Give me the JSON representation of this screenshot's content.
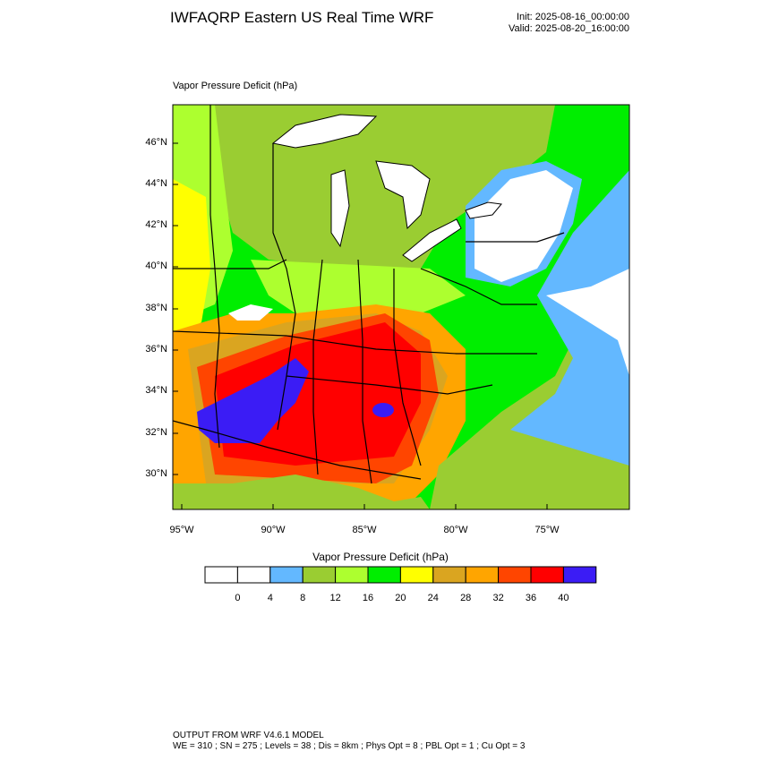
{
  "header": {
    "title": "IWFAQRP Eastern US Real Time WRF",
    "init": "Init: 2025-08-16_00:00:00",
    "valid": "Valid: 2025-08-20_16:00:00"
  },
  "map": {
    "label": "Vapor Pressure Deficit   (hPa)",
    "lat_labels": [
      "46°N",
      "44°N",
      "42°N",
      "40°N",
      "38°N",
      "36°N",
      "34°N",
      "32°N",
      "30°N"
    ],
    "lon_labels": [
      "95°W",
      "90°W",
      "85°W",
      "80°W",
      "75°W"
    ]
  },
  "colorbar": {
    "title": "Vapor Pressure Deficit  (hPa)",
    "labels": [
      "0",
      "4",
      "8",
      "12",
      "16",
      "20",
      "24",
      "28",
      "32",
      "36",
      "40"
    ],
    "colors": [
      "#ffffff",
      "#ffffff",
      "#63b8ff",
      "#9acd32",
      "#adff2f",
      "#00ee00",
      "#ffff00",
      "#daa520",
      "#ffa500",
      "#ff4500",
      "#ff0000",
      "#3b1cf5"
    ]
  },
  "footer": {
    "line1": "OUTPUT FROM WRF V4.6.1 MODEL",
    "line2": "WE = 310 ; SN = 275 ; Levels = 38 ; Dis = 8km ; Phys Opt = 8 ; PBL Opt = 1 ; Cu Opt = 3"
  }
}
